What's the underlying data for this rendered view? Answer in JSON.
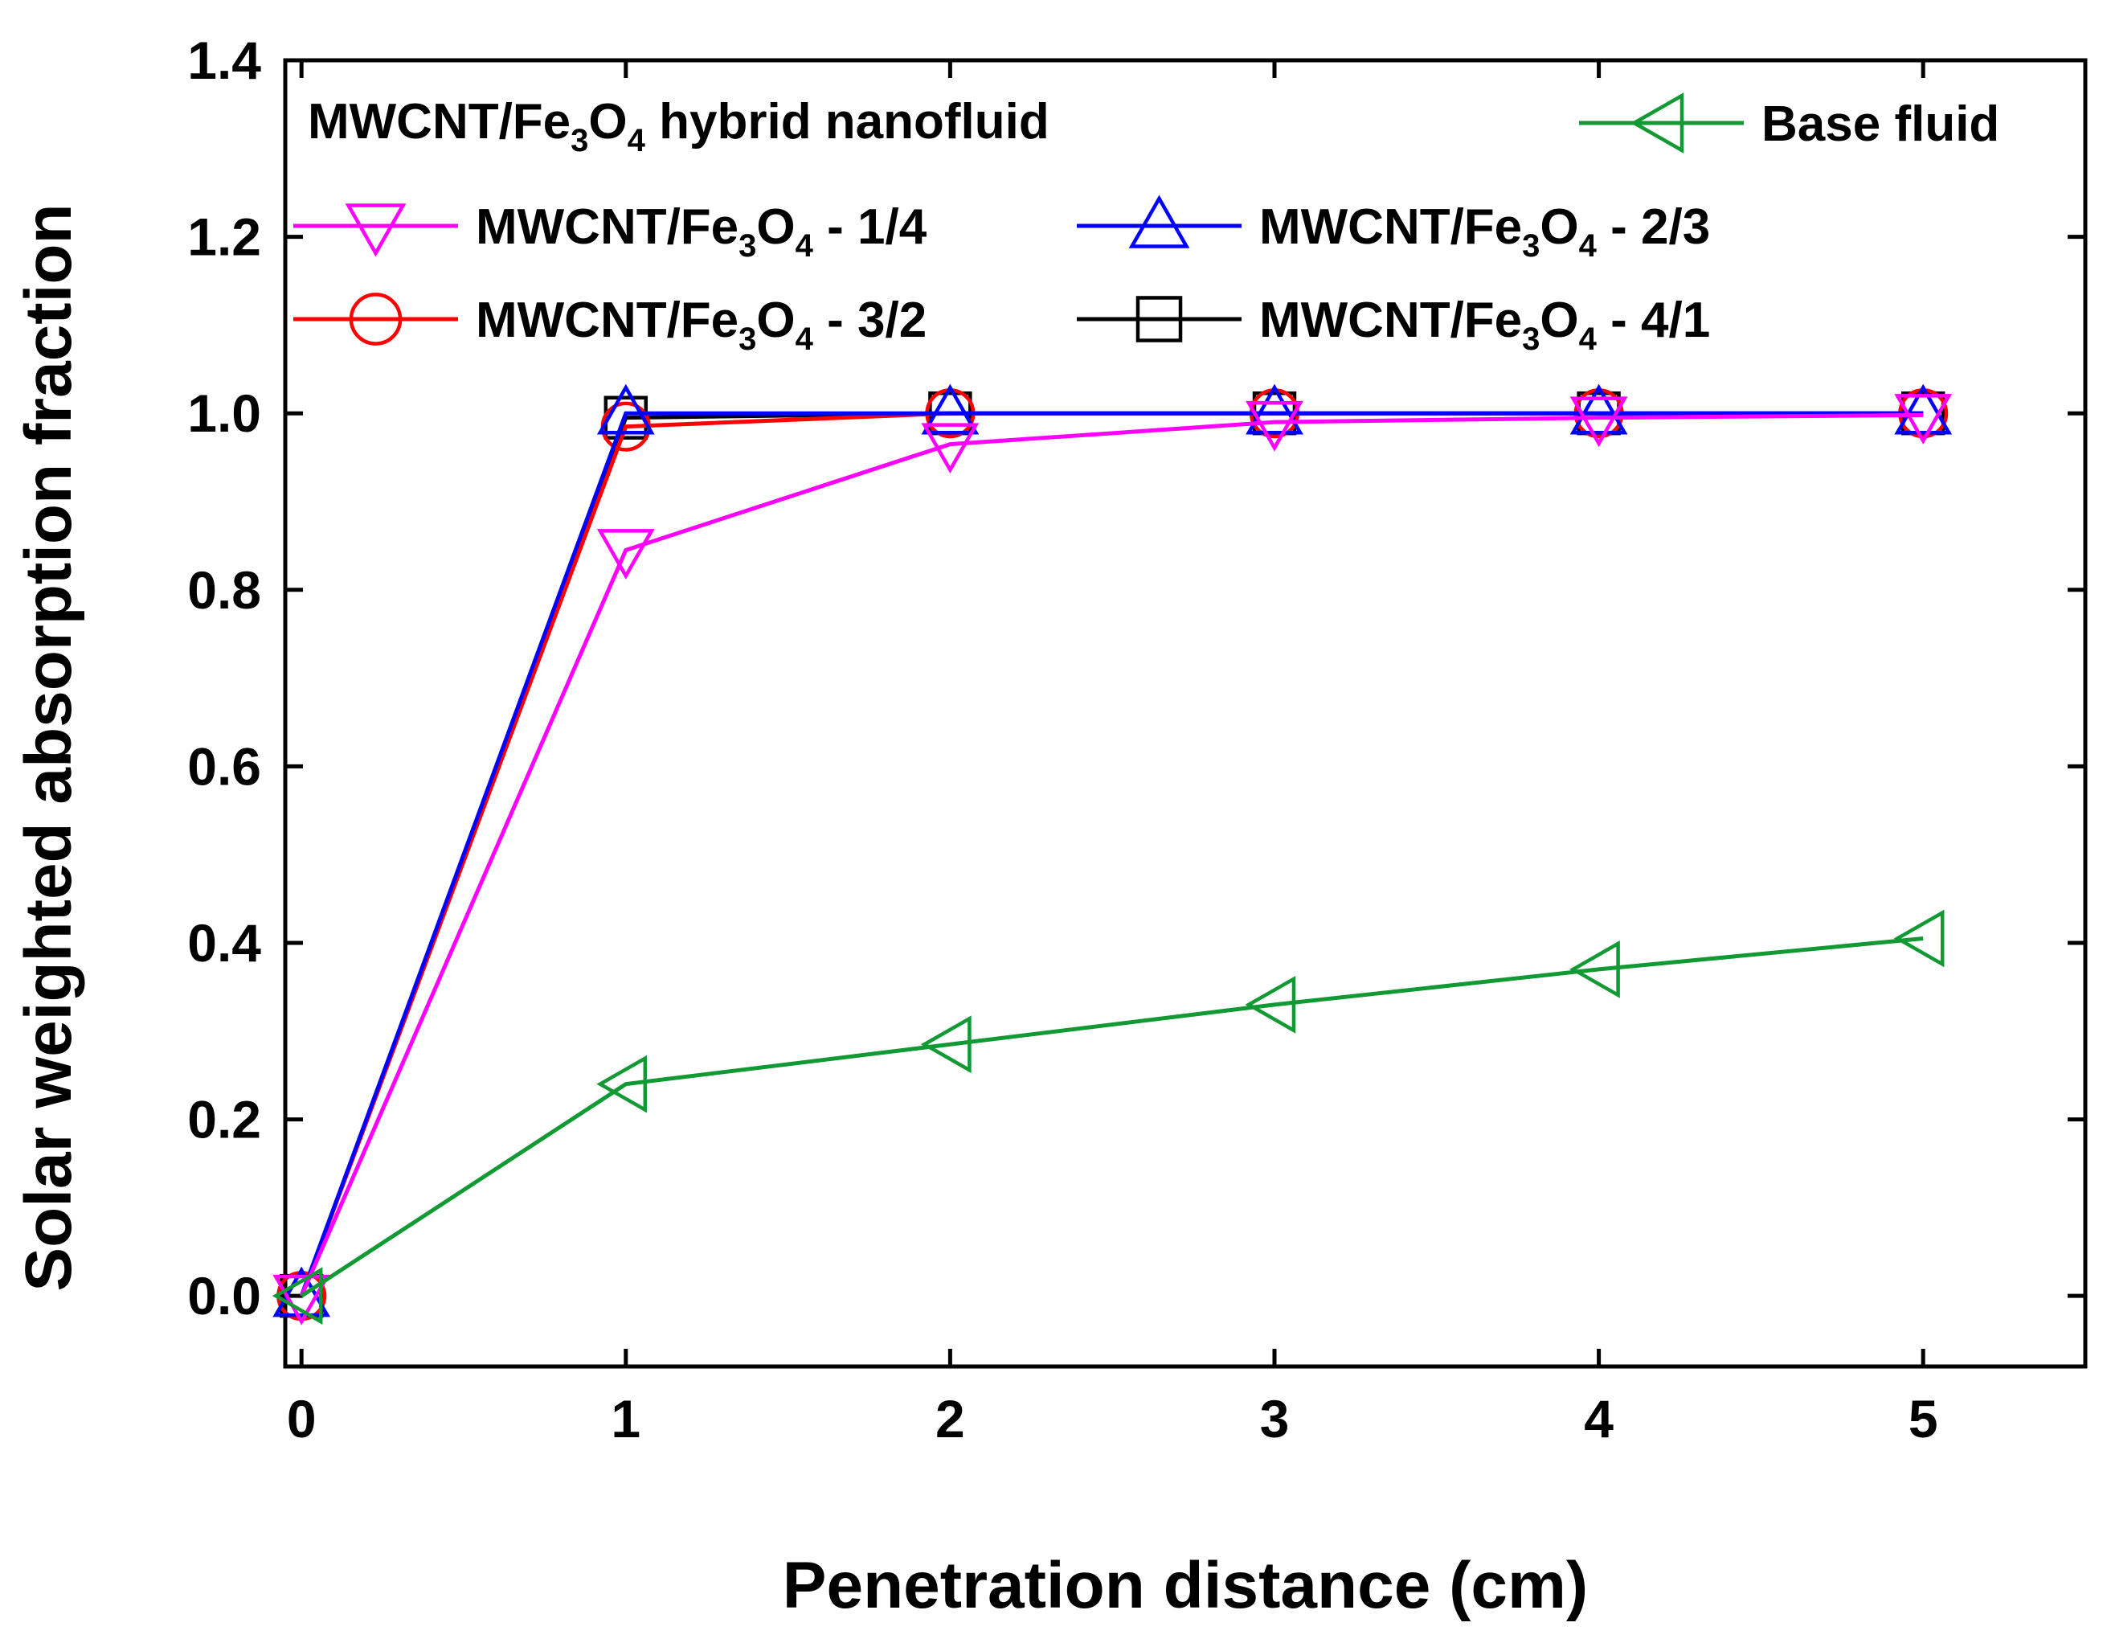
{
  "chart_data": {
    "type": "line",
    "title": "",
    "xlabel": "Penetration distance (cm)",
    "ylabel": "Solar weighted absorption fraction",
    "xlim": [
      -0.05,
      5.5
    ],
    "ylim": [
      -0.08,
      1.4
    ],
    "xticks": [
      0,
      1,
      2,
      3,
      4,
      5
    ],
    "yticks": [
      0.0,
      0.2,
      0.4,
      0.6,
      0.8,
      1.0,
      1.2,
      1.4
    ],
    "ytick_labels": [
      "0.0",
      "0.2",
      "0.4",
      "0.6",
      "0.8",
      "1.0",
      "1.2",
      "1.4"
    ],
    "legend_title": {
      "pre": "MWCNT/Fe",
      "sub1": "3",
      "mid": "O",
      "sub2": "4",
      "post": " hybrid nanofluid"
    },
    "legend_position": "top",
    "series": [
      {
        "name": "MWCNT/Fe3O4 - 4/1",
        "label": {
          "pre": "MWCNT/Fe",
          "sub1": "3",
          "mid": "O",
          "sub2": "4",
          "post": " - 4/1"
        },
        "color": "#000000",
        "marker": "square",
        "x": [
          0,
          1,
          2,
          3,
          4,
          5
        ],
        "y": [
          0.0,
          0.995,
          1.0,
          1.0,
          1.0,
          1.0
        ]
      },
      {
        "name": "MWCNT/Fe3O4 - 3/2",
        "label": {
          "pre": "MWCNT/Fe",
          "sub1": "3",
          "mid": "O",
          "sub2": "4",
          "post": " - 3/2"
        },
        "color": "#ff0000",
        "marker": "circle",
        "x": [
          0,
          1,
          2,
          3,
          4,
          5
        ],
        "y": [
          0.0,
          0.985,
          1.0,
          1.0,
          1.0,
          1.0
        ]
      },
      {
        "name": "MWCNT/Fe3O4 - 2/3",
        "label": {
          "pre": "MWCNT/Fe",
          "sub1": "3",
          "mid": "O",
          "sub2": "4",
          "post": " - 2/3"
        },
        "color": "#0000ff",
        "marker": "triangle-up",
        "x": [
          0,
          1,
          2,
          3,
          4,
          5
        ],
        "y": [
          0.0,
          1.0,
          1.0,
          1.0,
          1.0,
          1.0
        ]
      },
      {
        "name": "MWCNT/Fe3O4 - 1/4",
        "label": {
          "pre": "MWCNT/Fe",
          "sub1": "3",
          "mid": "O",
          "sub2": "4",
          "post": " - 1/4"
        },
        "color": "#ff00ff",
        "marker": "triangle-down",
        "x": [
          0,
          1,
          2,
          3,
          4,
          5
        ],
        "y": [
          0.0,
          0.845,
          0.965,
          0.99,
          0.995,
          0.998
        ]
      },
      {
        "name": "Base fluid",
        "label": {
          "pre": "Base fluid",
          "sub1": "",
          "mid": "",
          "sub2": "",
          "post": ""
        },
        "color": "#119933",
        "marker": "triangle-left",
        "x": [
          0,
          1,
          2,
          3,
          4,
          5
        ],
        "y": [
          0.0,
          0.24,
          0.285,
          0.33,
          0.37,
          0.405
        ]
      }
    ]
  }
}
